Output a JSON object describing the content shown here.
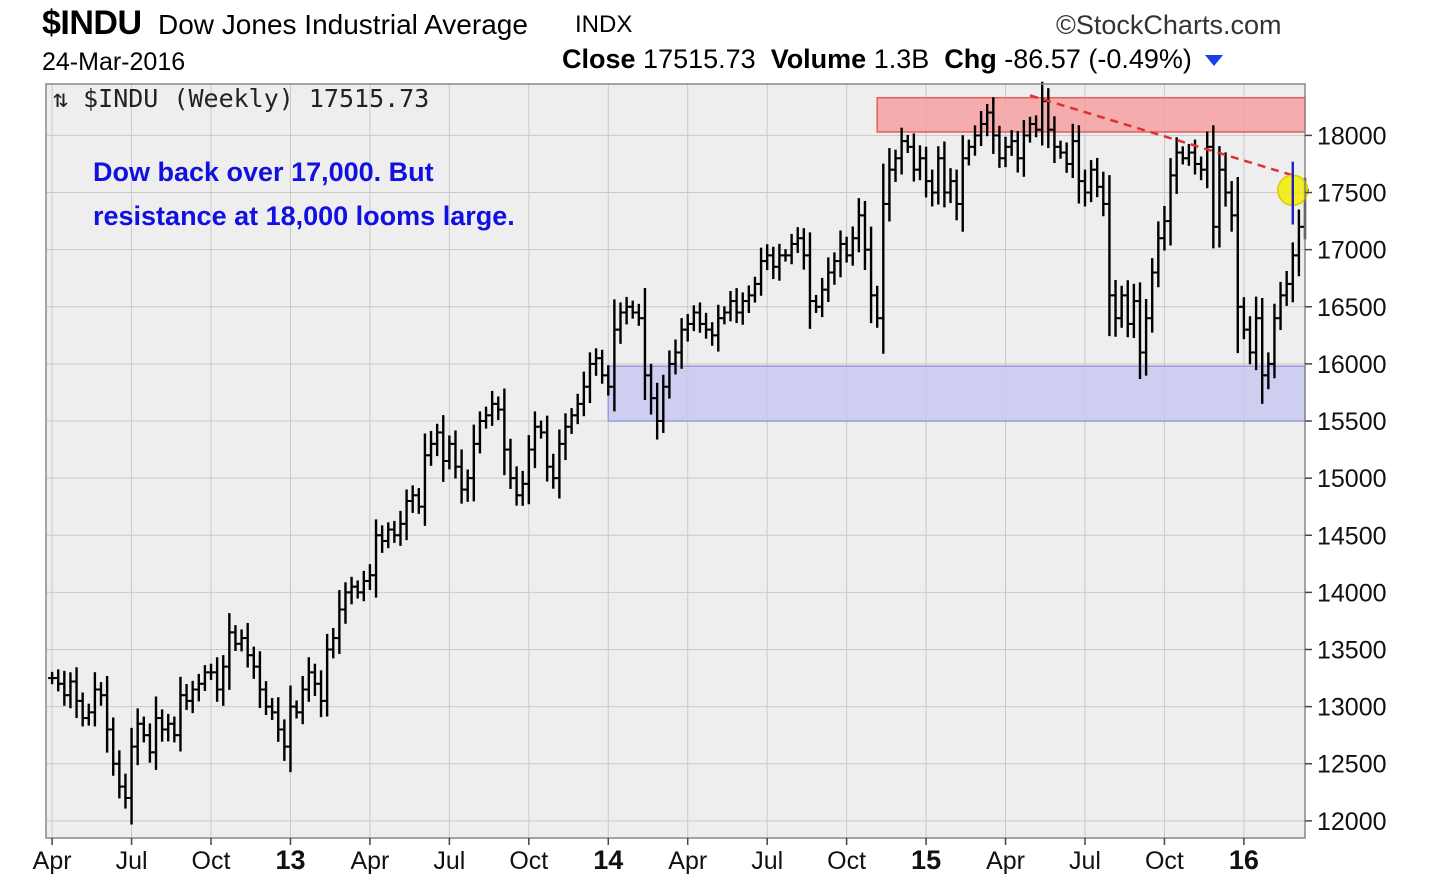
{
  "header": {
    "symbol": "$INDU",
    "name": "Dow Jones Industrial Average",
    "exchange": "INDX",
    "brand": "©StockCharts.com",
    "date": "24-Mar-2016",
    "close_label": "Close",
    "close_value": "17515.73",
    "volume_label": "Volume",
    "volume_value": "1.3B",
    "chg_label": "Chg",
    "chg_value": "-86.57 (-0.49%)",
    "dropdown_icon": "triangle-down-icon"
  },
  "chart_data": {
    "type": "ohlc",
    "legend": "$INDU (Weekly) 17515.73",
    "legend_icon": "up-down-arrows-icon",
    "annotation_lines": [
      "Dow back over 17,000. But",
      "resistance at 18,000 looms large."
    ],
    "annotation_color": "#1010e0",
    "y_ticks": [
      12000,
      12500,
      13000,
      13500,
      14000,
      14500,
      15000,
      15500,
      16000,
      16500,
      17000,
      17500,
      18000
    ],
    "ylim": [
      11850,
      18450
    ],
    "grid": true,
    "y_axis_side": "right",
    "x_ticks": [
      {
        "label": "Apr",
        "week": 0
      },
      {
        "label": "Jul",
        "week": 13
      },
      {
        "label": "Oct",
        "week": 26
      },
      {
        "label": "13",
        "week": 39,
        "bold": true
      },
      {
        "label": "Apr",
        "week": 52
      },
      {
        "label": "Jul",
        "week": 65
      },
      {
        "label": "Oct",
        "week": 78
      },
      {
        "label": "14",
        "week": 91,
        "bold": true
      },
      {
        "label": "Apr",
        "week": 104
      },
      {
        "label": "Jul",
        "week": 117
      },
      {
        "label": "Oct",
        "week": 130
      },
      {
        "label": "15",
        "week": 143,
        "bold": true
      },
      {
        "label": "Apr",
        "week": 156
      },
      {
        "label": "Jul",
        "week": 169
      },
      {
        "label": "Oct",
        "week": 182
      },
      {
        "label": "16",
        "week": 195,
        "bold": true
      }
    ],
    "week_range": [
      -1,
      205
    ],
    "zones": [
      {
        "name": "resistance-zone",
        "from_week": 135,
        "to_week": 205,
        "low": 18030,
        "high": 18330,
        "fill": "#f4a0a0",
        "stroke": "#e06060"
      },
      {
        "name": "support-zone",
        "from_week": 91,
        "to_week": 205,
        "low": 15500,
        "high": 15980,
        "fill": "#c8c8f0",
        "stroke": "#9a9ae0"
      }
    ],
    "trendline": {
      "from_week": 160,
      "from_value": 18350,
      "to_week": 203,
      "to_value": 17650,
      "color": "#e03030",
      "style": "dashed"
    },
    "highlight": {
      "week": 203,
      "value": 17520,
      "color": "#f2ec00"
    },
    "weekly_close": [
      13250,
      13200,
      13100,
      13220,
      13050,
      12900,
      12950,
      13150,
      13100,
      12800,
      12500,
      12300,
      12200,
      12650,
      12850,
      12750,
      12600,
      12900,
      12800,
      12850,
      12750,
      13100,
      13050,
      13150,
      13200,
      13300,
      13300,
      13150,
      13350,
      13650,
      13550,
      13600,
      13450,
      13350,
      13150,
      13000,
      12950,
      12800,
      12650,
      13000,
      12950,
      13150,
      13300,
      13200,
      13050,
      13500,
      13600,
      13850,
      14000,
      14050,
      14000,
      14100,
      14150,
      14500,
      14450,
      14550,
      14500,
      14600,
      14800,
      14850,
      14750,
      15200,
      15300,
      15400,
      15150,
      15300,
      15100,
      14900,
      15000,
      15300,
      15500,
      15550,
      15650,
      15600,
      15250,
      15000,
      14850,
      14950,
      15250,
      15450,
      15400,
      15100,
      15000,
      15300,
      15450,
      15550,
      15650,
      15800,
      16000,
      16050,
      15900,
      15800,
      16300,
      16450,
      16500,
      16450,
      16400,
      15900,
      15700,
      15500,
      15800,
      16000,
      16100,
      16300,
      16350,
      16450,
      16350,
      16300,
      16250,
      16400,
      16450,
      16550,
      16450,
      16550,
      16600,
      16700,
      16900,
      16950,
      16850,
      16950,
      16950,
      17050,
      17100,
      16950,
      16550,
      16500,
      16650,
      16800,
      16900,
      17050,
      16950,
      17100,
      17300,
      17000,
      16600,
      16400,
      17400,
      17700,
      17800,
      17950,
      17900,
      17700,
      17800,
      17600,
      17500,
      17800,
      17500,
      17600,
      17400,
      17800,
      17900,
      18000,
      18100,
      18200,
      18000,
      17800,
      17900,
      17950,
      17800,
      18000,
      18100,
      18050,
      18300,
      18050,
      17900,
      17850,
      17750,
      17950,
      17600,
      17500,
      17700,
      17550,
      17400,
      16600,
      16400,
      16600,
      16350,
      16550,
      16100,
      16400,
      16800,
      17100,
      17250,
      17650,
      17850,
      17800,
      17850,
      17750,
      17700,
      17900,
      17200,
      17700,
      17500,
      17300,
      16500,
      16300,
      16100,
      16400,
      15900,
      16000,
      16400,
      16600,
      16700,
      16950,
      17200,
      17520
    ]
  }
}
